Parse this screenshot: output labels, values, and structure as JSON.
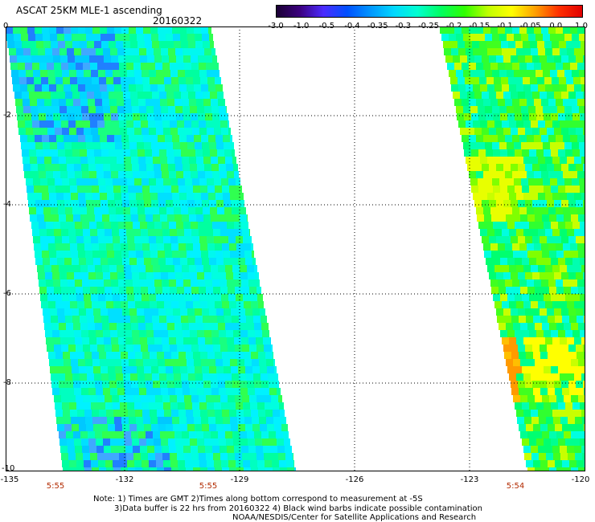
{
  "header": {
    "title": "ASCAT 25KM MLE-1 ascending",
    "date": "20160322"
  },
  "colorbar": {
    "labels": [
      "-3.0",
      "-1.0",
      "-0.5",
      "-0.4",
      "-0.35",
      "-0.3",
      "-0.25",
      "-0.2",
      "-0.15",
      "-0.1",
      "-0.05",
      "0.0",
      "1.0"
    ],
    "colors": [
      "#1a0033",
      "#3b007f",
      "#4b2bff",
      "#0050ff",
      "#0096ff",
      "#00d8ff",
      "#00ffd0",
      "#00ff60",
      "#30ff00",
      "#c0ff00",
      "#ffff00",
      "#ffa000",
      "#ff3000",
      "#e00000"
    ]
  },
  "axes": {
    "y_labels": [
      "0",
      "-2",
      "-4",
      "-6",
      "-8",
      "-10"
    ],
    "x_labels": [
      "-135",
      "-132",
      "-129",
      "-126",
      "-123",
      "-120"
    ]
  },
  "pass_times": [
    "5:55",
    "5:55",
    "5:54"
  ],
  "notes": [
    "Note: 1) Times are GMT 2)Times along bottom correspond to measurement at -5S",
    "3)Data buffer is 22 hrs from 20160322 4) Black wind barbs indicate possible contamination",
    "NOAA/NESDIS/Center for Satellite Applications and Research"
  ]
}
